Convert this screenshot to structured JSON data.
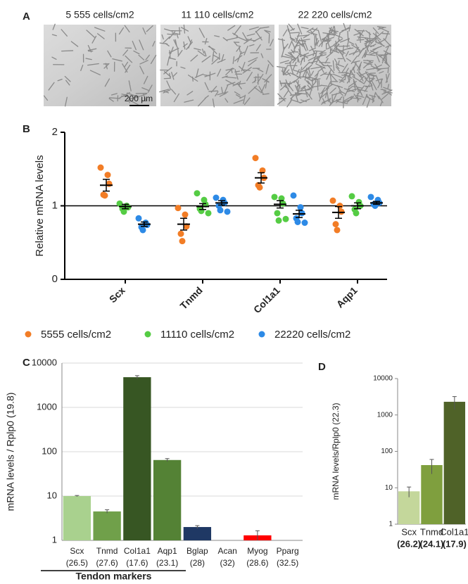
{
  "images_panel": {
    "panel": "A",
    "captions": [
      "5 555 cells/cm2",
      "11 110 cells/cm2",
      "22 220 cells/cm2"
    ],
    "scale_bar": "200 µm"
  },
  "chart_data": [
    {
      "type": "dotplot",
      "panel": "B",
      "y_label": "Relative mRNA levels",
      "categories": [
        "Scx",
        "Tnmd",
        "Col1a1",
        "Aqp1"
      ],
      "ylim": [
        0,
        2
      ],
      "yticks": [
        0,
        1,
        2
      ],
      "hline": 1,
      "series": [
        {
          "name": "5555 cells/cm2",
          "color": "#f27d26",
          "points": [
            [
              1.52,
              1.42,
              1.3,
              1.15,
              1.14
            ],
            [
              0.97,
              0.88,
              0.72,
              0.62,
              0.52
            ],
            [
              1.65,
              1.48,
              1.38,
              1.28,
              1.25
            ],
            [
              1.07,
              1.0,
              0.92,
              0.75,
              0.67
            ]
          ],
          "means": [
            1.28,
            0.75,
            1.38,
            0.91
          ],
          "errors": [
            0.08,
            0.08,
            0.07,
            0.08
          ]
        },
        {
          "name": "11110 cells/cm2",
          "color": "#55cc44",
          "points": [
            [
              1.03,
              1.0,
              0.98,
              0.96,
              0.92
            ],
            [
              1.17,
              1.08,
              1.02,
              0.96,
              0.93,
              0.9
            ],
            [
              1.12,
              1.1,
              1.03,
              0.9,
              0.8,
              0.82
            ],
            [
              1.13,
              1.05,
              1.0,
              0.95,
              0.9
            ]
          ],
          "means": [
            0.99,
            0.99,
            1.02,
            1.0
          ],
          "errors": [
            0.03,
            0.04,
            0.05,
            0.04
          ]
        },
        {
          "name": "22220 cells/cm2",
          "color": "#2d8ae6",
          "points": [
            [
              0.83,
              0.77,
              0.74,
              0.71,
              0.67
            ],
            [
              1.11,
              1.08,
              1.04,
              1.0,
              0.94,
              0.92
            ],
            [
              1.14,
              0.98,
              0.9,
              0.83,
              0.78,
              0.77
            ],
            [
              1.12,
              1.08,
              1.04,
              1.02,
              1.0
            ]
          ],
          "means": [
            0.75,
            1.04,
            0.89,
            1.04
          ],
          "errors": [
            0.03,
            0.03,
            0.05,
            0.02
          ]
        }
      ]
    },
    {
      "type": "bar",
      "panel": "C",
      "y_label": "mRNA levels / Rplp0 (19.8)",
      "log_scale": true,
      "grid": true,
      "categories": [
        "Scx",
        "Tnmd",
        "Col1a1",
        "Aqp1",
        "Bglap",
        "Acan",
        "Myog",
        "Pparg"
      ],
      "ct_labels": [
        "(26.5)",
        "(27.6)",
        "(17.6)",
        "(23.1)",
        "(28)",
        "(32)",
        "(28.6)",
        "(32.5)"
      ],
      "values": [
        10,
        4.5,
        4800,
        65,
        2.0,
        null,
        1.3,
        null
      ],
      "errors": [
        0.3,
        0.4,
        400,
        5,
        0.15,
        null,
        0.35,
        null
      ],
      "colors": [
        "#a9d18e",
        "#70a04a",
        "#375623",
        "#548235",
        "#1f3864",
        null,
        "#ff0000",
        null
      ],
      "ylim": [
        1,
        10000
      ],
      "yticks": [
        1,
        10,
        100,
        1000,
        10000
      ],
      "annotation": "Tendon markers"
    },
    {
      "type": "bar",
      "panel": "D",
      "y_label": "mRNA levels/Rplp0 (22.3)",
      "log_scale": true,
      "grid": false,
      "categories": [
        "Scx",
        "Tnmd",
        "Col1a1"
      ],
      "ct_labels": [
        "(26.2)",
        "(24.1)",
        "(17.9)"
      ],
      "values": [
        8,
        42,
        2300
      ],
      "errors": [
        2.5,
        18,
        900
      ],
      "colors": [
        "#c4d79b",
        "#7f9f3e",
        "#4f6228"
      ],
      "ylim": [
        1,
        10000
      ],
      "yticks": [
        1,
        10,
        100,
        1000,
        10000
      ]
    }
  ]
}
